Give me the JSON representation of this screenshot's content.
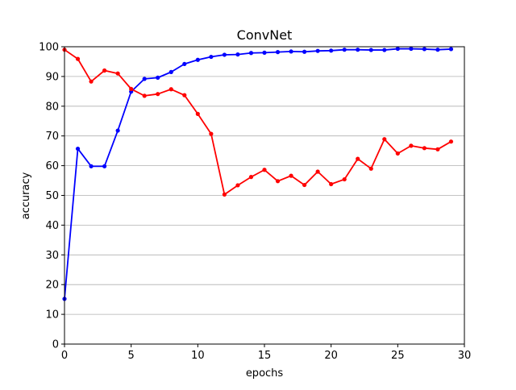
{
  "chart_data": {
    "type": "line",
    "title": "ConvNet",
    "xlabel": "epochs",
    "ylabel": "accuracy",
    "xlim": [
      0,
      30
    ],
    "ylim": [
      0,
      100
    ],
    "xticks": [
      0,
      5,
      10,
      15,
      20,
      25,
      30
    ],
    "yticks": [
      0,
      10,
      20,
      30,
      40,
      50,
      60,
      70,
      80,
      90,
      100
    ],
    "grid": "horizontal",
    "x": [
      0,
      1,
      2,
      3,
      4,
      5,
      6,
      7,
      8,
      9,
      10,
      11,
      12,
      13,
      14,
      15,
      16,
      17,
      18,
      19,
      20,
      21,
      22,
      23,
      24,
      25,
      26,
      27,
      28,
      29
    ],
    "series": [
      {
        "color": "#0000ff",
        "marker": "circle",
        "values": [
          15.2,
          65.7,
          59.8,
          59.8,
          71.8,
          84.9,
          89.2,
          89.6,
          91.5,
          94.2,
          95.6,
          96.6,
          97.3,
          97.4,
          97.9,
          98.0,
          98.2,
          98.4,
          98.3,
          98.6,
          98.7,
          99.0,
          99.0,
          98.9,
          98.9,
          99.3,
          99.3,
          99.2,
          99.0,
          99.2
        ]
      },
      {
        "color": "#ff0000",
        "marker": "circle",
        "values": [
          99.0,
          95.9,
          88.3,
          92.0,
          91.0,
          85.8,
          83.5,
          84.1,
          85.7,
          83.7,
          77.4,
          70.7,
          50.3,
          53.4,
          56.2,
          58.6,
          54.8,
          56.6,
          53.5,
          58.0,
          53.8,
          55.4,
          62.3,
          59.0,
          68.9,
          64.1,
          66.7,
          65.9,
          65.5,
          68.1
        ]
      }
    ]
  }
}
